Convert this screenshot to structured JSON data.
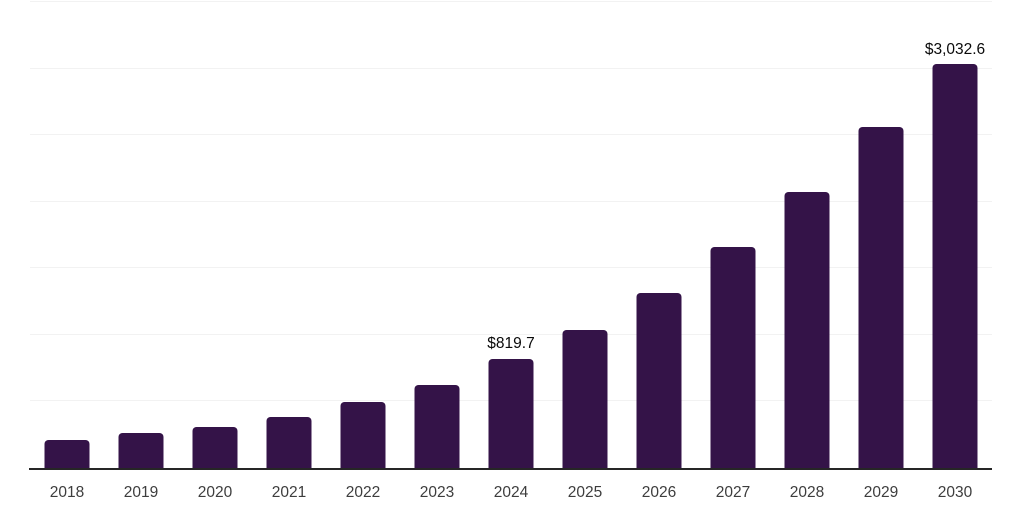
{
  "chart_data": {
    "type": "bar",
    "title": "",
    "xlabel": "",
    "ylabel": "",
    "value_prefix": "$",
    "categories": [
      "2018",
      "2019",
      "2020",
      "2021",
      "2022",
      "2023",
      "2024",
      "2025",
      "2026",
      "2027",
      "2028",
      "2029",
      "2030"
    ],
    "values": [
      210,
      262,
      306,
      381,
      497,
      627,
      819.7,
      1037,
      1313,
      1657,
      2071,
      2563,
      3032.6
    ],
    "point_labels": [
      "",
      "",
      "",
      "",
      "",
      "",
      "$819.7",
      "",
      "",
      "",
      "",
      "",
      "$3,032.6"
    ],
    "ylim": [
      0,
      3500
    ],
    "y_gridlines": [
      500,
      1000,
      1500,
      2000,
      2500,
      3000,
      3500
    ],
    "grid": true,
    "legend_position": "none",
    "y_tick_labels_visible": false,
    "colors": {
      "bar": "#341348",
      "axis": "#262626",
      "gridline": "#f2f2f2",
      "tick_text": "#3d3d3d",
      "value_label_text": "#0a0a0a",
      "background": "#ffffff"
    }
  }
}
